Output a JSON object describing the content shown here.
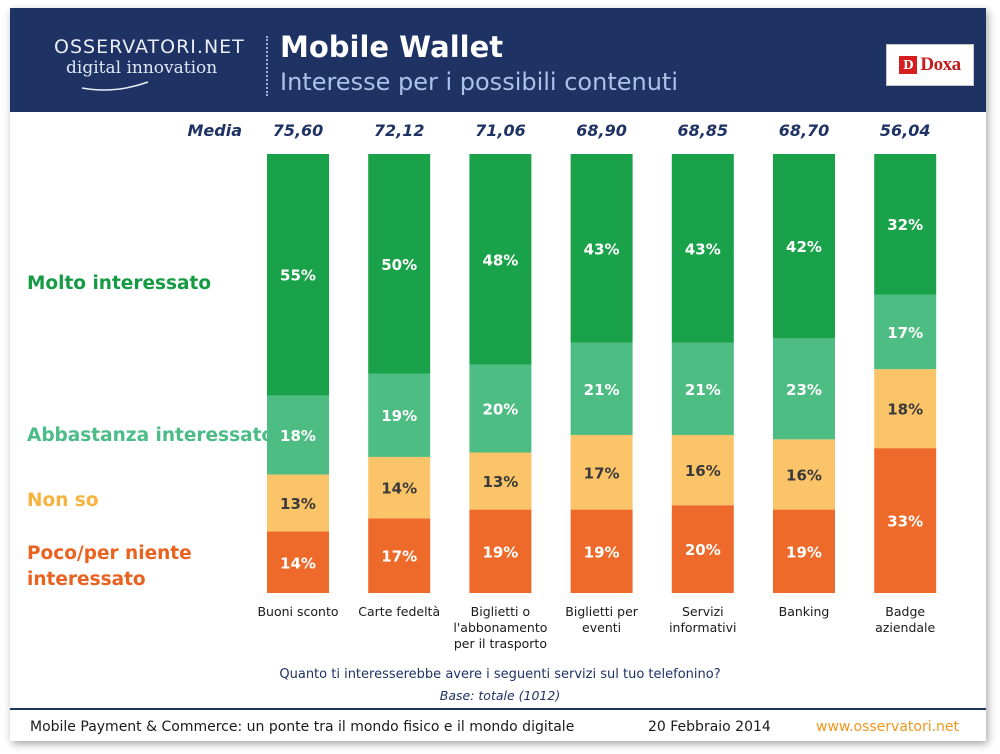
{
  "header": {
    "logo_line1": "OSSERVATORI.NET",
    "logo_line2": "digital innovation",
    "title": "Mobile Wallet",
    "subtitle": "Interesse per i possibili contenuti",
    "partner_logo": "Doxa"
  },
  "colors": {
    "header_bg": "#1e3264",
    "molto": "#1aa24b",
    "abbastanza": "#4dbd83",
    "non_so": "#fbc469",
    "poco": "#ee6a2a",
    "label_molto": "#169b45",
    "label_abbastanza": "#4cbc86",
    "label_non_so": "#f7b23f",
    "label_poco": "#e9621f",
    "footer_url": "#f0961c"
  },
  "chart_data": {
    "type": "bar",
    "stacked": true,
    "percent_stacked": true,
    "title": "Mobile Wallet - Interesse per i possibili contenuti",
    "question": "Quanto ti interesserebbe avere i seguenti servizi sul tuo telefonino?",
    "base": "Base: totale (1012)",
    "media_label": "Media",
    "media": [
      "75,60",
      "72,12",
      "71,06",
      "68,90",
      "68,85",
      "68,70",
      "56,04"
    ],
    "categories": [
      [
        "Buoni sconto"
      ],
      [
        "Carte fedeltà"
      ],
      [
        "Biglietti o",
        "l'abbonamento",
        "per il trasporto"
      ],
      [
        "Biglietti per",
        "eventi"
      ],
      [
        "Servizi",
        "informativi"
      ],
      [
        "Banking"
      ],
      [
        "Badge",
        "aziendale"
      ]
    ],
    "series": [
      {
        "name": "Poco/per niente interessato",
        "name_lines": [
          "Poco/per niente",
          "interessato"
        ],
        "color": "#ee6a2a",
        "values": [
          14,
          17,
          19,
          19,
          20,
          19,
          33
        ]
      },
      {
        "name": "Non so",
        "name_lines": [
          "Non so"
        ],
        "color": "#fbc469",
        "values": [
          13,
          14,
          13,
          17,
          16,
          16,
          18
        ]
      },
      {
        "name": "Abbastanza interessato",
        "name_lines": [
          "Abbastanza interessato"
        ],
        "color": "#4dbd83",
        "values": [
          18,
          19,
          20,
          21,
          21,
          23,
          17
        ]
      },
      {
        "name": "Molto interessato",
        "name_lines": [
          "Molto interessato"
        ],
        "color": "#1aa24b",
        "values": [
          55,
          50,
          48,
          43,
          43,
          42,
          32
        ]
      }
    ],
    "ylim": [
      0,
      100
    ],
    "legend": "left"
  },
  "footer": {
    "left": "Mobile Payment & Commerce: un ponte tra il mondo fisico e il mondo digitale",
    "date": "20 Febbraio 2014",
    "url": "www.osservatori.net"
  }
}
